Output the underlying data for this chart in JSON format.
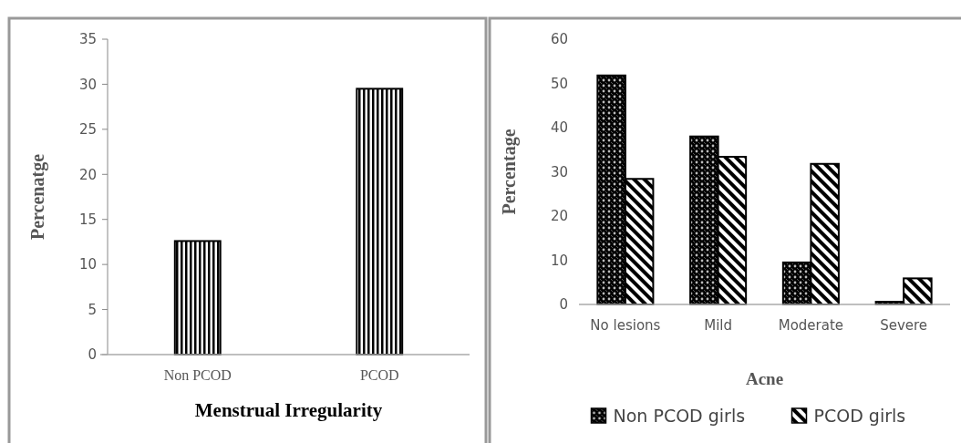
{
  "chart_data": [
    {
      "type": "bar",
      "xlabel": "Menstrual Irregularity",
      "ylabel": "Percenatge",
      "categories": [
        "Non PCOD",
        "PCOD"
      ],
      "values": [
        12.6,
        29.5
      ],
      "color": "#000000",
      "ylim": [
        0,
        35
      ],
      "yticks": [
        0,
        5,
        10,
        15,
        20,
        25,
        30,
        35
      ],
      "grid": false,
      "legend": false
    },
    {
      "type": "bar",
      "xlabel": "Acne",
      "ylabel": "Percentage",
      "categories": [
        "No lesions",
        "Mild",
        "Moderate",
        "Severe"
      ],
      "series": [
        {
          "name": "Non PCOD girls",
          "color": "#000000",
          "values": [
            51.8,
            38.0,
            9.5,
            0.6
          ]
        },
        {
          "name": "PCOD girls",
          "color": "#000000",
          "values": [
            28.4,
            33.4,
            31.8,
            5.9
          ]
        }
      ],
      "ylim": [
        0,
        60
      ],
      "yticks": [
        0,
        10,
        20,
        30,
        40,
        50,
        60
      ],
      "grid": false,
      "legend": "bottom"
    }
  ]
}
